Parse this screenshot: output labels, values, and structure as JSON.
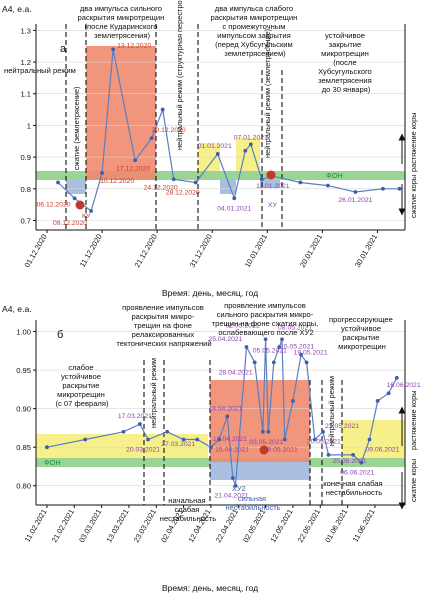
{
  "chart_data": [
    {
      "type": "line",
      "panel_label": "а",
      "ylabel": "A4, е.а.",
      "xlabel": "Время: день, месяц, год",
      "yticks": [
        "0.7",
        "0.8",
        "0.9",
        "1",
        "1.1",
        "1.2",
        "1.3"
      ],
      "ylim": [
        0.67,
        1.32
      ],
      "xticks": [
        "01.12.2020",
        "11.12.2020",
        "21.12.2020",
        "31.12.2020",
        "10.01.2021",
        "20.01.2021",
        "30.01.2021"
      ],
      "series": [
        {
          "x": [
            "2020-12-03",
            "2020-12-06",
            "2020-12-09",
            "2020-12-11",
            "2020-12-13",
            "2020-12-17",
            "2020-12-20",
            "2020-12-22",
            "2020-12-24",
            "2020-12-28",
            "2021-01-01",
            "2021-01-04",
            "2021-01-06",
            "2021-01-07",
            "2021-01-09",
            "2021-01-11",
            "2021-01-16",
            "2021-01-21",
            "2021-01-26",
            "2021-01-31",
            "2021-02-03"
          ],
          "values": [
            0.82,
            0.77,
            0.73,
            0.85,
            1.24,
            0.89,
            0.96,
            1.05,
            0.83,
            0.82,
            0.91,
            0.77,
            0.92,
            0.94,
            0.83,
            0.84,
            0.82,
            0.81,
            0.79,
            0.8,
            0.8
          ]
        }
      ],
      "data_labels": [
        {
          "text": "06.12.2020",
          "color": "red"
        },
        {
          "text": "09.12.2020",
          "color": "red"
        },
        {
          "text": "10.12.2020",
          "color": "red"
        },
        {
          "text": "13.12.2020",
          "color": "red"
        },
        {
          "text": "17.12.2020",
          "color": "red"
        },
        {
          "text": "20.12.2020",
          "color": "red"
        },
        {
          "text": "24.12.2020",
          "color": "red"
        },
        {
          "text": "28.12.2020",
          "color": "red"
        },
        {
          "text": "01.01.2021",
          "color": "purple"
        },
        {
          "text": "04.01.2021",
          "color": "purple"
        },
        {
          "text": "07.01.2021",
          "color": "purple"
        },
        {
          "text": "11.01.2021",
          "color": "purple"
        },
        {
          "text": "26.01.2021",
          "color": "purple"
        }
      ],
      "annotations": {
        "neutral1": "нейтральный режим",
        "compress1": "сжатие (землетрясение)",
        "two_strong": [
          "два импульса сильного",
          "раскрытия микротрещин",
          "(после Кударинского",
          "землетрясения)"
        ],
        "neutral_struct": "нейтральный режим (структурная перестройка)",
        "two_weak": [
          "два импульса слабого",
          "раскрытия микротрещин",
          "с промежуточным",
          "импульсом закрытия",
          "(перед Хубсугульским",
          "землетрясением)"
        ],
        "neutral_eq": "нейтральный режим (землетрясение)",
        "stable_close": [
          "устойчивое",
          "закрытие",
          "микротрещин",
          "(после",
          "Хубсугульского",
          "землетрясения",
          "до 30 января)"
        ],
        "ku": "КУ",
        "khu": "ХУ",
        "fon": "ФОН",
        "stretch": "растяжение коры",
        "compress": "сжатие коры"
      },
      "colors": {
        "line": "#5b7fbf",
        "green_band": "#8fd08a",
        "red_zone": "#f08a6e",
        "yellow": "#f7f08a",
        "blue_zone": "#a8bfe0",
        "eq_marker": "#c0392b"
      }
    },
    {
      "type": "line",
      "panel_label": "б",
      "ylabel": "A4, е.а.",
      "xlabel": "Время: день, месяц, год",
      "yticks": [
        "0.80",
        "0.85",
        "0.90",
        "0.95",
        "1.00"
      ],
      "ylim": [
        0.775,
        1.015
      ],
      "xticks": [
        "11.02.2021",
        "21.02.2021",
        "03.03.2021",
        "13.03.2021",
        "23.03.2021",
        "02.04.2021",
        "12.04.2021",
        "22.04.2021",
        "02.05.2021",
        "12.05.2021",
        "22.05.2021",
        "01.06.2021",
        "11.06.2021"
      ],
      "series": [
        {
          "x": [
            "2021-02-11",
            "2021-02-25",
            "2021-03-11",
            "2021-03-17",
            "2021-03-20",
            "2021-03-27",
            "2021-04-02",
            "2021-04-07",
            "2021-04-12",
            "2021-04-15",
            "2021-04-18",
            "2021-04-20",
            "2021-04-21",
            "2021-04-25",
            "2021-04-28",
            "2021-05-01",
            "2021-05-02",
            "2021-05-03",
            "2021-05-05",
            "2021-05-07",
            "2021-05-08",
            "2021-05-09",
            "2021-05-12",
            "2021-05-15",
            "2021-05-17",
            "2021-05-20",
            "2021-05-23",
            "2021-05-25",
            "2021-06-03",
            "2021-06-06",
            "2021-06-09",
            "2021-06-12",
            "2021-06-16",
            "2021-06-19"
          ],
          "values": [
            0.85,
            0.86,
            0.87,
            0.88,
            0.86,
            0.87,
            0.86,
            0.86,
            0.85,
            0.86,
            0.89,
            0.81,
            0.8,
            0.98,
            0.96,
            0.87,
            0.99,
            0.87,
            0.96,
            0.98,
            0.99,
            0.86,
            0.91,
            0.97,
            0.96,
            0.86,
            0.87,
            0.84,
            0.84,
            0.83,
            0.86,
            0.91,
            0.92,
            0.94
          ]
        }
      ],
      "data_labels": [
        {
          "text": "17.03.2021"
        },
        {
          "text": "20.03.2021"
        },
        {
          "text": "27.03.2021"
        },
        {
          "text": "12.04.2021"
        },
        {
          "text": "15.04.2021"
        },
        {
          "text": "18.04.2021"
        },
        {
          "text": "21.04.2021"
        },
        {
          "text": "25.04.2021"
        },
        {
          "text": "28.04.2021"
        },
        {
          "text": "02.05.2021"
        },
        {
          "text": "03.05.2021"
        },
        {
          "text": "05.05.2021"
        },
        {
          "text": "08.05.2021"
        },
        {
          "text": "09.05.2021"
        },
        {
          "text": "15.05.2021"
        },
        {
          "text": "19.05.2021"
        },
        {
          "text": "20.05.2021"
        },
        {
          "text": "23.05.2021"
        },
        {
          "text": "25.05.2021"
        },
        {
          "text": "06.06.2021"
        },
        {
          "text": "09.06.2021"
        },
        {
          "text": "16.06.2021"
        }
      ],
      "annotations": {
        "weak_stable": [
          "слабое",
          "устойчивое",
          "раскрытие",
          "микротрещин",
          "(с 07 февраля)"
        ],
        "neutral1": "нейтральный режим",
        "relax": [
          "проявление импульсов",
          "раскрытия микро-",
          "трещин на фоне",
          "релаксированных",
          "тектонических напряжений"
        ],
        "start_weak": [
          "начальная",
          "слабая",
          "нестабильность"
        ],
        "compress_bg": [
          "проявление импульсов",
          "сильного раскрытия микро-",
          "трещин на фоне сжатия коры,",
          "ослабевающего после ХУ2"
        ],
        "khu2": "ХУ2",
        "strong": [
          "сильная",
          "нестабильность"
        ],
        "end_weak": [
          "конечная слабая",
          "нестабильность"
        ],
        "neutral2": "нейтральный режим",
        "progress": [
          "прогрессирующее",
          "устойчивое",
          "раскрытие",
          "микротрещин"
        ],
        "fon": "ФОН",
        "stretch": "растяжение коры",
        "compress": "сжатие коры"
      }
    }
  ]
}
